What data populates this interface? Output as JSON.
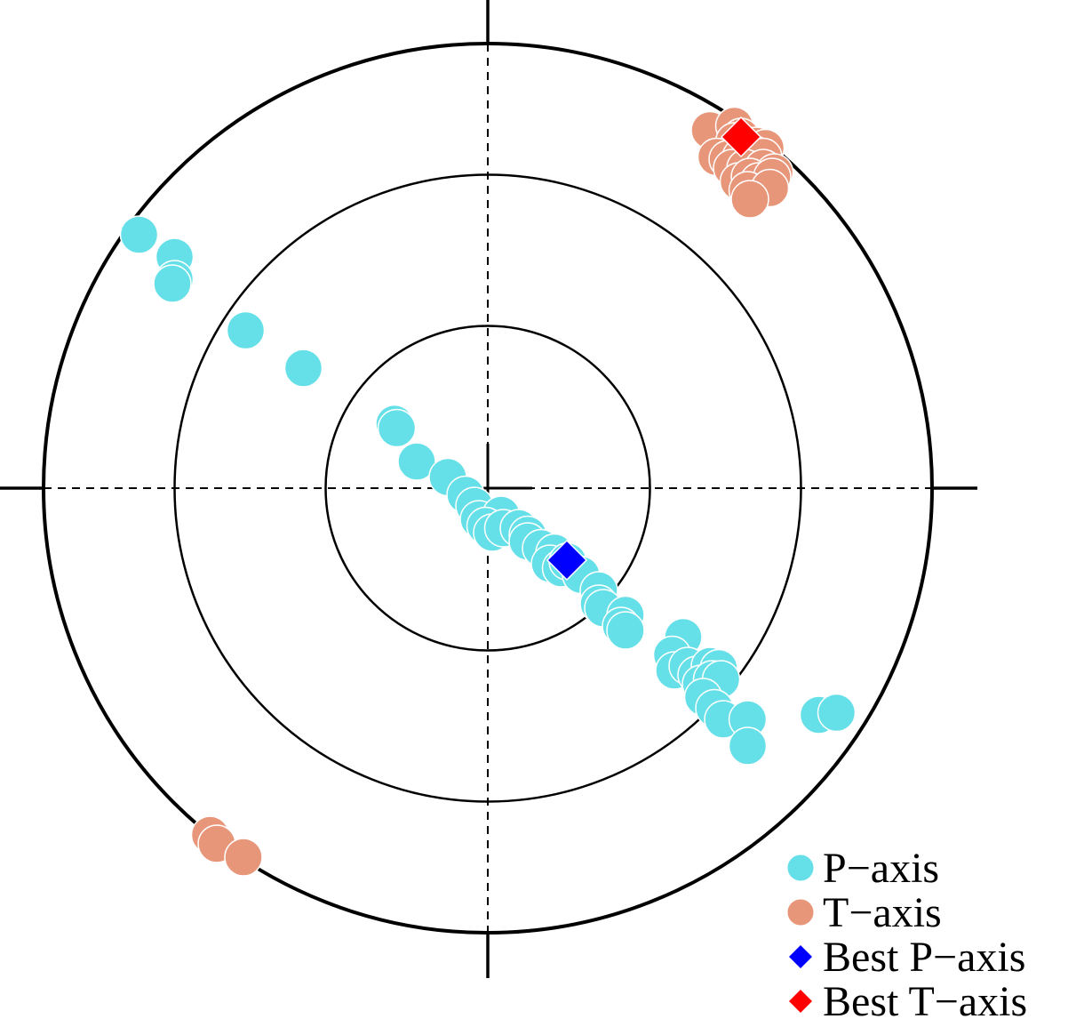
{
  "chart_data": {
    "type": "scatter",
    "projection": "polar stereonet (lower hemisphere)",
    "title": "",
    "xlabel": "",
    "ylabel": "",
    "xlim": [
      -1,
      1
    ],
    "ylim": [
      -1,
      1
    ],
    "rings": [
      0.365,
      0.705,
      1.0
    ],
    "grid": "dashed cross-hair through center",
    "legend_position": "bottom-right",
    "colors": {
      "p_axis": "#66e0e8",
      "t_axis": "#e8967a",
      "best_p": "#0000ff",
      "best_t": "#ff0000"
    },
    "series": [
      {
        "name": "P−axis",
        "marker": "circle",
        "color": "#66e0e8",
        "points": [
          [
            -0.785,
            0.57
          ],
          [
            -0.705,
            0.52
          ],
          [
            -0.705,
            0.47
          ],
          [
            -0.71,
            0.46
          ],
          [
            -0.545,
            0.355
          ],
          [
            -0.415,
            0.27
          ],
          [
            -0.21,
            0.145
          ],
          [
            -0.205,
            0.135
          ],
          [
            -0.16,
            0.06
          ],
          [
            -0.09,
            0.025
          ],
          [
            -0.05,
            -0.015
          ],
          [
            -0.03,
            -0.04
          ],
          [
            -0.02,
            -0.07
          ],
          [
            0.03,
            -0.06
          ],
          [
            -0.005,
            -0.085
          ],
          [
            0.01,
            -0.1
          ],
          [
            0.035,
            -0.09
          ],
          [
            0.07,
            -0.09
          ],
          [
            0.09,
            -0.105
          ],
          [
            0.09,
            -0.12
          ],
          [
            0.12,
            -0.135
          ],
          [
            0.15,
            -0.145
          ],
          [
            0.14,
            -0.17
          ],
          [
            0.165,
            -0.18
          ],
          [
            0.18,
            -0.165
          ],
          [
            0.21,
            -0.195
          ],
          [
            0.25,
            -0.23
          ],
          [
            0.25,
            -0.26
          ],
          [
            0.26,
            -0.27
          ],
          [
            0.31,
            -0.285
          ],
          [
            0.3,
            -0.31
          ],
          [
            0.31,
            -0.32
          ],
          [
            0.44,
            -0.335
          ],
          [
            0.415,
            -0.375
          ],
          [
            0.42,
            -0.41
          ],
          [
            0.45,
            -0.4
          ],
          [
            0.47,
            -0.42
          ],
          [
            0.5,
            -0.4
          ],
          [
            0.52,
            -0.405
          ],
          [
            0.48,
            -0.44
          ],
          [
            0.505,
            -0.43
          ],
          [
            0.525,
            -0.43
          ],
          [
            0.485,
            -0.47
          ],
          [
            0.51,
            -0.495
          ],
          [
            0.53,
            -0.52
          ],
          [
            0.585,
            -0.52
          ],
          [
            0.585,
            -0.58
          ],
          [
            0.745,
            -0.51
          ],
          [
            0.785,
            -0.505
          ]
        ]
      },
      {
        "name": "T−axis",
        "marker": "circle",
        "color": "#e8967a",
        "points": [
          [
            0.5,
            0.805
          ],
          [
            0.555,
            0.815
          ],
          [
            0.57,
            0.79
          ],
          [
            0.555,
            0.78
          ],
          [
            0.585,
            0.77
          ],
          [
            0.605,
            0.77
          ],
          [
            0.625,
            0.765
          ],
          [
            0.515,
            0.745
          ],
          [
            0.54,
            0.74
          ],
          [
            0.57,
            0.745
          ],
          [
            0.6,
            0.75
          ],
          [
            0.62,
            0.745
          ],
          [
            0.55,
            0.72
          ],
          [
            0.58,
            0.72
          ],
          [
            0.62,
            0.72
          ],
          [
            0.645,
            0.71
          ],
          [
            0.565,
            0.69
          ],
          [
            0.59,
            0.7
          ],
          [
            0.61,
            0.69
          ],
          [
            0.64,
            0.7
          ],
          [
            0.585,
            0.67
          ],
          [
            0.635,
            0.675
          ],
          [
            0.59,
            0.65
          ],
          [
            -0.625,
            -0.78
          ],
          [
            -0.61,
            -0.8
          ],
          [
            -0.55,
            -0.83
          ]
        ]
      },
      {
        "name": "Best P−axis",
        "marker": "diamond",
        "color": "#0000ff",
        "points": [
          [
            0.178,
            -0.162
          ]
        ]
      },
      {
        "name": "Best T−axis",
        "marker": "diamond",
        "color": "#ff0000",
        "points": [
          [
            0.57,
            0.79
          ]
        ]
      }
    ]
  }
}
